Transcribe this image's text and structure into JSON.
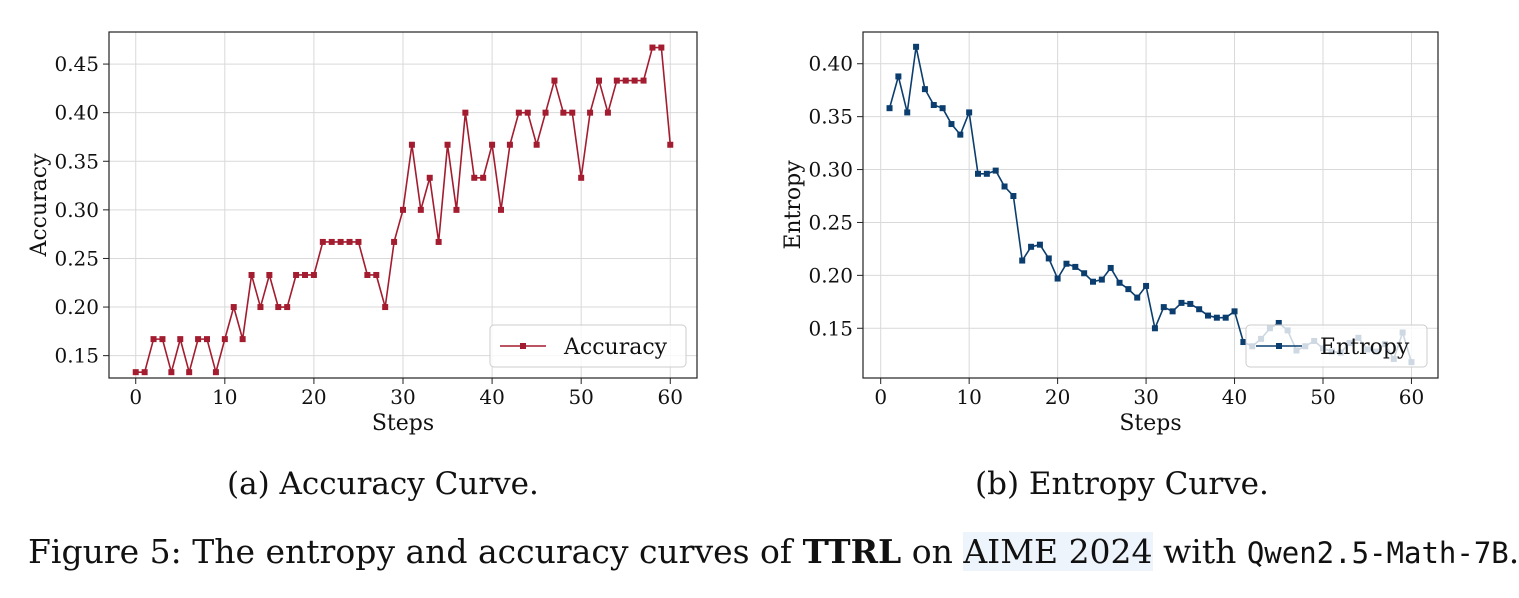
{
  "chart_data": [
    {
      "type": "line",
      "title": "",
      "xlabel": "Steps",
      "ylabel": "Accuracy",
      "xlim": [
        -3,
        63
      ],
      "ylim": [
        0.127,
        0.483
      ],
      "xticks": [
        "0",
        "10",
        "20",
        "30",
        "40",
        "50",
        "60"
      ],
      "yticks": [
        "0.15",
        "0.20",
        "0.25",
        "0.30",
        "0.35",
        "0.40",
        "0.45"
      ],
      "grid": true,
      "legend": "lower-right",
      "series": [
        {
          "name": "Accuracy",
          "color": "#a31c2f",
          "marker": "square",
          "x": [
            0,
            1,
            2,
            3,
            4,
            5,
            6,
            7,
            8,
            9,
            10,
            11,
            12,
            13,
            14,
            15,
            16,
            17,
            18,
            19,
            20,
            21,
            22,
            23,
            24,
            25,
            26,
            27,
            28,
            29,
            30,
            31,
            32,
            33,
            34,
            35,
            36,
            37,
            38,
            39,
            40,
            41,
            42,
            43,
            44,
            45,
            46,
            47,
            48,
            49,
            50,
            51,
            52,
            53,
            54,
            55,
            56,
            57,
            58,
            59,
            60
          ],
          "values": [
            0.133,
            0.133,
            0.167,
            0.167,
            0.133,
            0.167,
            0.133,
            0.167,
            0.167,
            0.133,
            0.167,
            0.2,
            0.167,
            0.233,
            0.2,
            0.233,
            0.2,
            0.2,
            0.233,
            0.233,
            0.233,
            0.267,
            0.267,
            0.267,
            0.267,
            0.267,
            0.233,
            0.233,
            0.2,
            0.267,
            0.3,
            0.367,
            0.3,
            0.333,
            0.267,
            0.367,
            0.3,
            0.4,
            0.333,
            0.333,
            0.367,
            0.3,
            0.367,
            0.4,
            0.4,
            0.367,
            0.4,
            0.433,
            0.4,
            0.4,
            0.333,
            0.4,
            0.433,
            0.4,
            0.433,
            0.433,
            0.433,
            0.433,
            0.467,
            0.467,
            0.367
          ]
        }
      ]
    },
    {
      "type": "line",
      "title": "",
      "xlabel": "Steps",
      "ylabel": "Entropy",
      "xlim": [
        -2,
        63
      ],
      "ylim": [
        0.103,
        0.43
      ],
      "xticks": [
        "0",
        "10",
        "20",
        "30",
        "40",
        "50",
        "60"
      ],
      "yticks": [
        "0.15",
        "0.20",
        "0.25",
        "0.30",
        "0.35",
        "0.40"
      ],
      "grid": true,
      "legend": "lower-right",
      "series": [
        {
          "name": "Entropy",
          "color": "#0b3e6f",
          "marker": "square",
          "x": [
            1,
            2,
            3,
            4,
            5,
            6,
            7,
            8,
            9,
            10,
            11,
            12,
            13,
            14,
            15,
            16,
            17,
            18,
            19,
            20,
            21,
            22,
            23,
            24,
            25,
            26,
            27,
            28,
            29,
            30,
            31,
            32,
            33,
            34,
            35,
            36,
            37,
            38,
            39,
            40,
            41,
            42,
            43,
            44,
            45,
            46,
            47,
            48,
            49,
            50,
            51,
            52,
            53,
            54,
            55,
            56,
            57,
            58,
            59,
            60
          ],
          "values": [
            0.358,
            0.388,
            0.354,
            0.416,
            0.376,
            0.361,
            0.358,
            0.343,
            0.333,
            0.354,
            0.296,
            0.296,
            0.299,
            0.284,
            0.275,
            0.214,
            0.227,
            0.229,
            0.216,
            0.197,
            0.211,
            0.208,
            0.202,
            0.194,
            0.196,
            0.207,
            0.193,
            0.187,
            0.179,
            0.19,
            0.15,
            0.17,
            0.166,
            0.174,
            0.173,
            0.168,
            0.162,
            0.16,
            0.16,
            0.166,
            0.137,
            0.133,
            0.14,
            0.15,
            0.155,
            0.148,
            0.129,
            0.133,
            0.138,
            0.131,
            0.128,
            0.127,
            0.136,
            0.141,
            0.13,
            0.128,
            0.135,
            0.121,
            0.146,
            0.118
          ]
        }
      ]
    }
  ],
  "captions": {
    "a": "(a) Accuracy Curve.",
    "b": "(b) Entropy Curve."
  },
  "figure_caption": {
    "prefix": "Figure 5: The entropy and accuracy curves of ",
    "method": "TTRL",
    "middle": " on ",
    "dataset": "AIME 2024",
    "with": " with ",
    "model": "Qwen2.5-Math-7B",
    "suffix": "."
  }
}
